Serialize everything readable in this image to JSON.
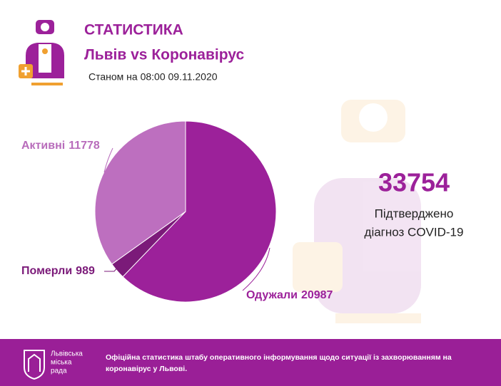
{
  "header": {
    "title": "СТАТИСТИКА",
    "subtitle": "Львів vs Коронавірус",
    "date": "Станом на 08:00 09.11.2020"
  },
  "chart_data": {
    "type": "pie",
    "categories": [
      "Одужали",
      "Померли",
      "Активні"
    ],
    "values": [
      20987,
      989,
      11778
    ],
    "colors": [
      "#9c219a",
      "#7b1a79",
      "#bd6fbf"
    ],
    "label_colors": [
      "#9c219a",
      "#7b1a79",
      "#b86cbb"
    ]
  },
  "confirmed": {
    "value": 33754,
    "label_lines": [
      "Підтверджено",
      "діагноз COVID-19"
    ]
  },
  "footer": {
    "logo_lines": [
      "Львівська",
      "міська",
      "рада"
    ],
    "text_lines": [
      "Офіційна статистика штабу оперативного інформування щодо ситуації із захворюванням на",
      "коронавірус у Львові."
    ]
  }
}
